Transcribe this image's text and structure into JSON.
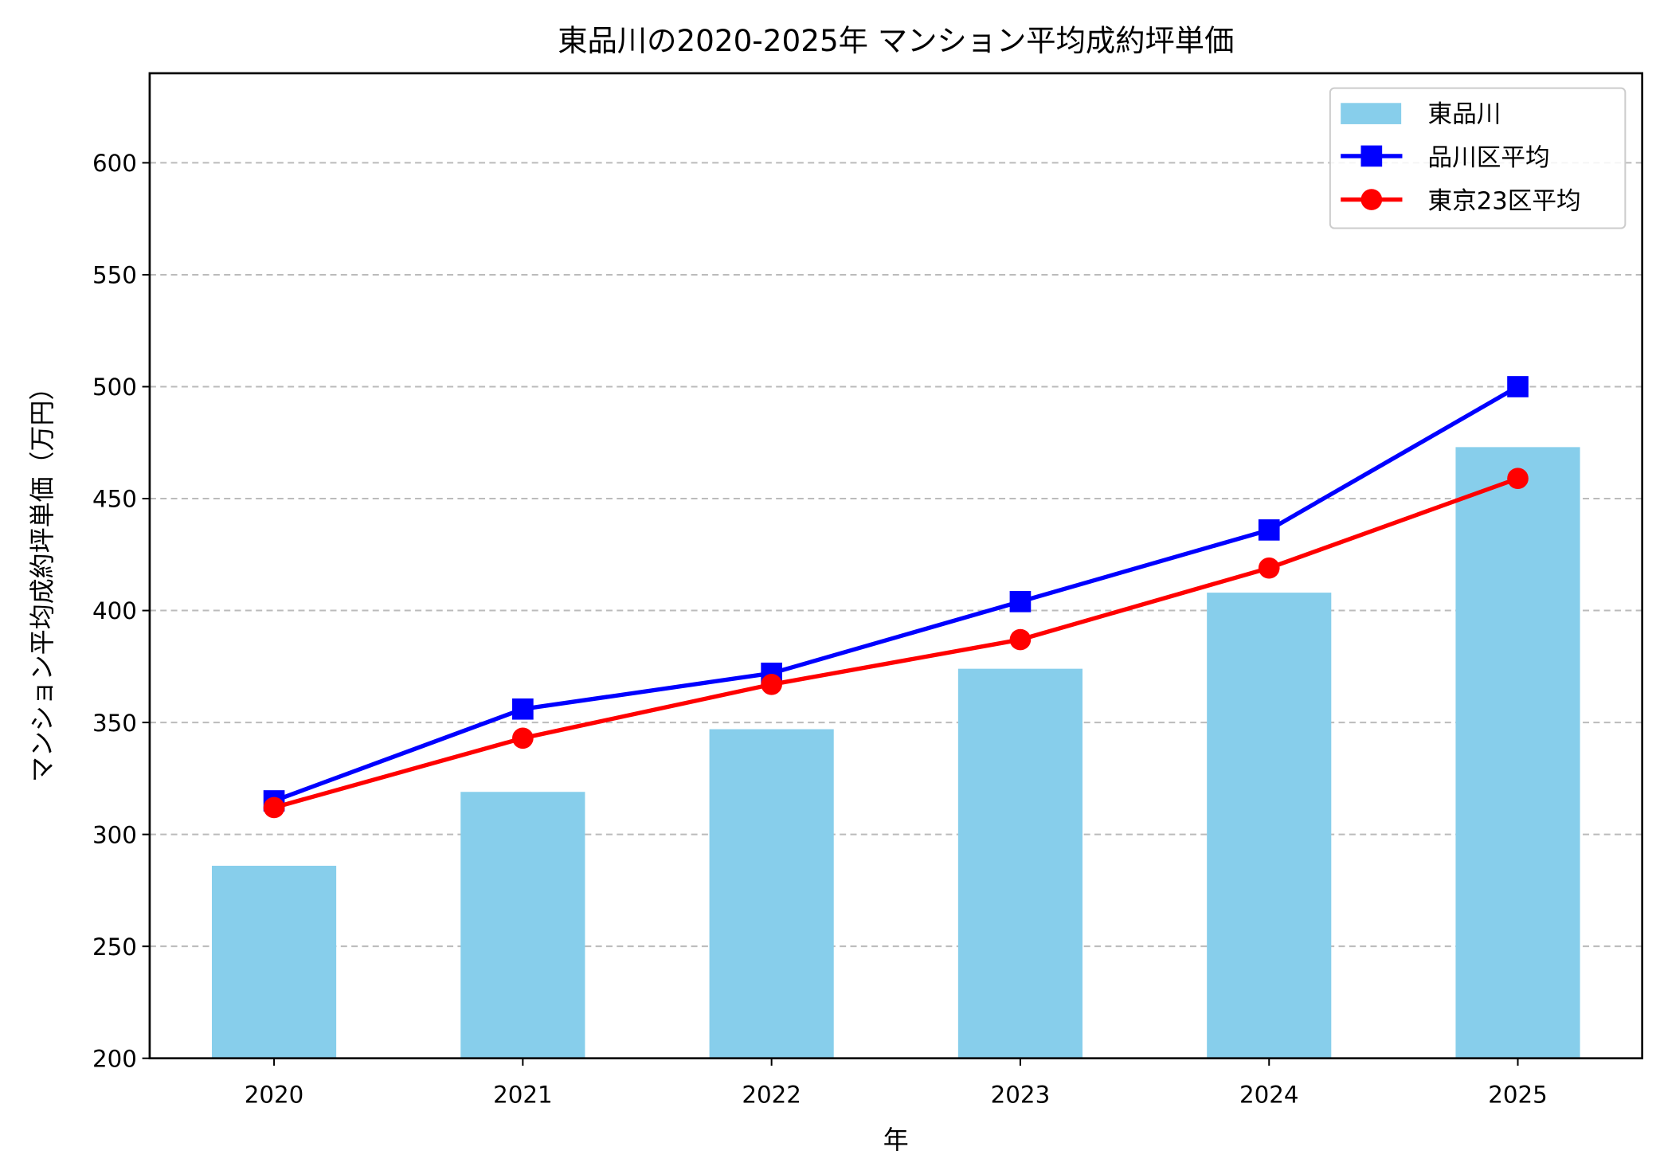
{
  "chart_data": {
    "type": "bar+line",
    "title": "東品川の2020-2025年 マンション平均成約坪単価",
    "xlabel": "年",
    "ylabel": "マンション平均成約坪単価（万円）",
    "categories": [
      "2020",
      "2021",
      "2022",
      "2023",
      "2024",
      "2025"
    ],
    "ylim": [
      200,
      640
    ],
    "yticks": [
      "200",
      "250",
      "300",
      "350",
      "400",
      "450",
      "500",
      "550",
      "600"
    ],
    "grid": "y dashed",
    "legend_position": "top-right",
    "series": [
      {
        "name": "東品川",
        "kind": "bar",
        "color": "#87ceeb",
        "values": [
          286,
          319,
          347,
          374,
          408,
          473
        ]
      },
      {
        "name": "品川区平均",
        "kind": "line",
        "marker": "square",
        "color": "#0000ff",
        "values": [
          315,
          356,
          372,
          404,
          436,
          500
        ]
      },
      {
        "name": "東京23区平均",
        "kind": "line",
        "marker": "circle",
        "color": "#ff0000",
        "values": [
          312,
          343,
          367,
          387,
          419,
          459
        ]
      }
    ]
  }
}
